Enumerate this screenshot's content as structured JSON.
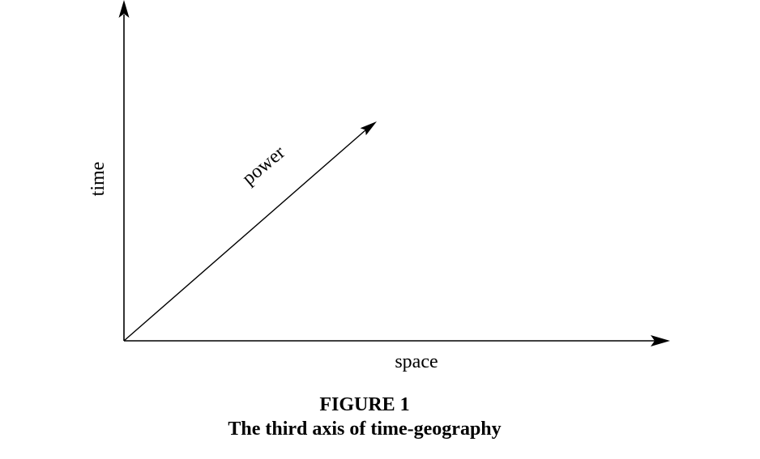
{
  "axes": {
    "vertical_label": "time",
    "horizontal_label": "space",
    "diagonal_label": "power"
  },
  "caption": {
    "number": "FIGURE 1",
    "title": "The third axis of time-geography"
  },
  "colors": {
    "line": "#000000",
    "background": "#ffffff"
  }
}
